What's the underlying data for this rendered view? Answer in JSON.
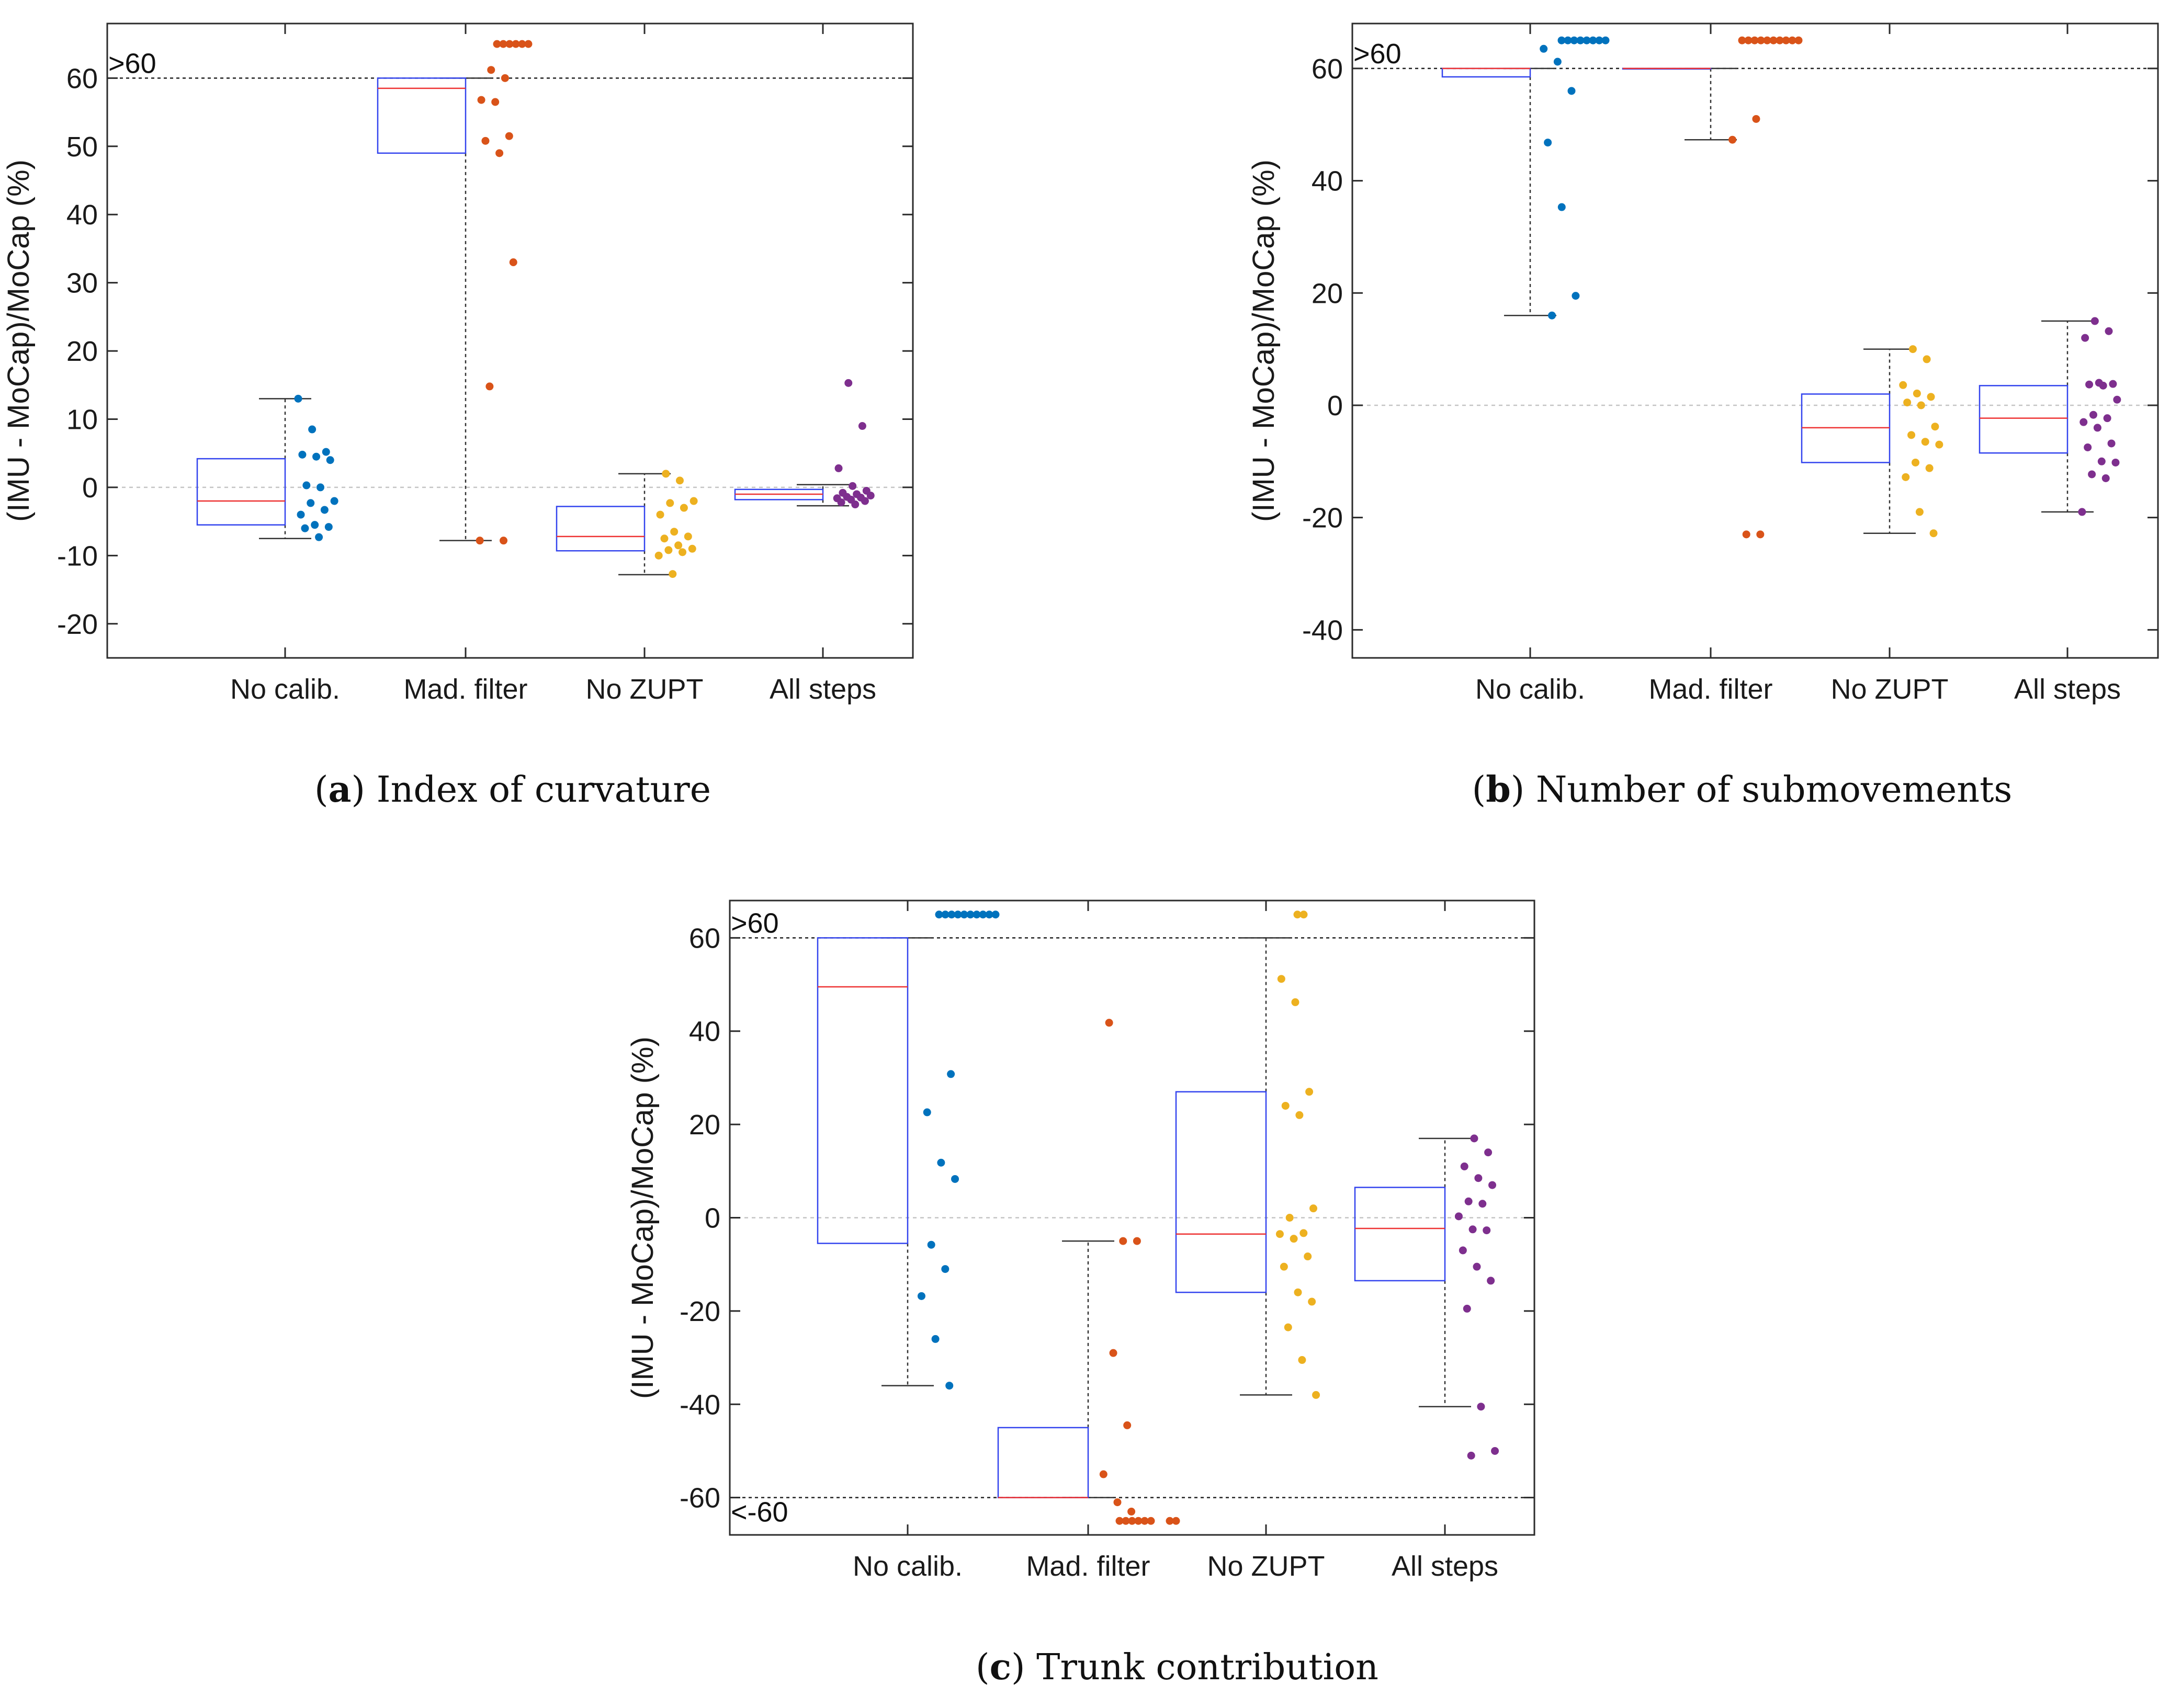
{
  "chart_data": [
    {
      "type": "box",
      "panel_letter": "a",
      "caption": "Index of curvature",
      "ylabel": "(IMU - MoCap)/MoCap (%)",
      "ylim": [
        -25,
        68
      ],
      "yticks": [
        60,
        50,
        40,
        30,
        20,
        10,
        0,
        -10,
        -20
      ],
      "threshold_lines": [
        {
          "y": 60,
          "label": ">60"
        }
      ],
      "categories": [
        "No calib.",
        "Mad. filter",
        "No ZUPT",
        "All steps"
      ],
      "colors": [
        "#0072BD",
        "#D95319",
        "#EDB120",
        "#7E2F8E"
      ],
      "boxes": [
        {
          "q1": -5.5,
          "median": -2,
          "q3": 4.2,
          "whisker_low": -7.5,
          "whisker_high": 13
        },
        {
          "q1": 49,
          "median": 58.5,
          "q3": 60,
          "whisker_low": -7.8,
          "whisker_high": 60
        },
        {
          "q1": -9.3,
          "median": -7.2,
          "q3": -2.8,
          "whisker_low": -12.8,
          "whisker_high": 2
        },
        {
          "q1": -1.8,
          "median": -1,
          "q3": -0.3,
          "whisker_low": -2.7,
          "whisker_high": 0.4
        }
      ],
      "points": [
        [
          13,
          8.5,
          5.2,
          4.8,
          4.5,
          4,
          0.3,
          0,
          -2,
          -2.3,
          -3.3,
          -4,
          -5.5,
          -5.8,
          -6,
          -7.3
        ],
        [
          65,
          65,
          65,
          65,
          65,
          65,
          61.2,
          60,
          56.8,
          56.5,
          51.5,
          50.8,
          49,
          33,
          14.8,
          -7.8,
          -7.8
        ],
        [
          2,
          1,
          -2,
          -2.3,
          -3,
          -4,
          -6.5,
          -7.2,
          -7.5,
          -8.5,
          -9,
          -9.2,
          -9.5,
          -10,
          -12.7
        ],
        [
          15.3,
          9,
          2.8,
          0.2,
          -0.5,
          -0.8,
          -1,
          -1.2,
          -1.4,
          -1.5,
          -1.6,
          -1.8,
          -2,
          -2.2,
          -2.5
        ]
      ]
    },
    {
      "type": "box",
      "panel_letter": "b",
      "caption": "Number of submovements",
      "ylabel": "(IMU - MoCap)/MoCap (%)",
      "ylim": [
        -45,
        68
      ],
      "yticks": [
        60,
        40,
        20,
        0,
        -20,
        -40
      ],
      "threshold_lines": [
        {
          "y": 60,
          "label": ">60"
        }
      ],
      "categories": [
        "No calib.",
        "Mad. filter",
        "No ZUPT",
        "All steps"
      ],
      "colors": [
        "#0072BD",
        "#D95319",
        "#EDB120",
        "#7E2F8E"
      ],
      "boxes": [
        {
          "q1": 58.5,
          "median": 60,
          "q3": 60,
          "whisker_low": 16,
          "whisker_high": 60
        },
        {
          "q1": 60,
          "median": 60,
          "q3": 60,
          "whisker_low": 47.3,
          "whisker_high": 60
        },
        {
          "q1": -10.2,
          "median": -4,
          "q3": 2,
          "whisker_low": -22.8,
          "whisker_high": 10
        },
        {
          "q1": -8.5,
          "median": -2.3,
          "q3": 3.5,
          "whisker_low": -19,
          "whisker_high": 15
        }
      ],
      "points": [
        [
          65,
          65,
          65,
          65,
          65,
          65,
          65,
          65,
          63.5,
          61.2,
          56,
          46.8,
          35.3,
          19.5,
          16
        ],
        [
          65,
          65,
          65,
          65,
          65,
          65,
          65,
          65,
          65,
          65,
          51,
          47.3,
          -23,
          -23
        ],
        [
          10,
          8.2,
          3.6,
          2.1,
          1.5,
          0.5,
          0,
          -3.8,
          -5.3,
          -6.5,
          -7,
          -10.2,
          -11.2,
          -12.8,
          -19,
          -22.8
        ],
        [
          15,
          13.2,
          12,
          4,
          3.8,
          3.7,
          3.5,
          1,
          -1.7,
          -2.3,
          -3,
          -4,
          -6.8,
          -7.5,
          -10,
          -10.2,
          -12.3,
          -13,
          -19
        ]
      ]
    },
    {
      "type": "box",
      "panel_letter": "c",
      "caption": "Trunk contribution",
      "ylabel": "(IMU - MoCap)/MoCap (%)",
      "ylim": [
        -68,
        68
      ],
      "yticks": [
        60,
        40,
        20,
        0,
        -20,
        -40,
        -60
      ],
      "threshold_lines": [
        {
          "y": 60,
          "label": ">60"
        },
        {
          "y": -60,
          "label": "<-60"
        }
      ],
      "categories": [
        "No calib.",
        "Mad. filter",
        "No ZUPT",
        "All steps"
      ],
      "colors": [
        "#0072BD",
        "#D95319",
        "#EDB120",
        "#7E2F8E"
      ],
      "boxes": [
        {
          "q1": -5.5,
          "median": 49.5,
          "q3": 60,
          "whisker_low": -36,
          "whisker_high": 60
        },
        {
          "q1": -60,
          "median": -60,
          "q3": -45,
          "whisker_low": -60,
          "whisker_high": -5
        },
        {
          "q1": -16,
          "median": -3.5,
          "q3": 27,
          "whisker_low": -38,
          "whisker_high": 60
        },
        {
          "q1": -13.5,
          "median": -2.3,
          "q3": 6.5,
          "whisker_low": -40.5,
          "whisker_high": 17
        }
      ],
      "points": [
        [
          65,
          65,
          65,
          65,
          65,
          65,
          65,
          65,
          65,
          65,
          30.8,
          22.6,
          11.8,
          8.3,
          -5.8,
          -11,
          -16.8,
          -26,
          -36
        ],
        [
          41.8,
          -5,
          -5,
          -29,
          -44.5,
          -55,
          -61,
          -63,
          -65,
          -65,
          -65,
          -65,
          -65,
          -65,
          -65,
          -65
        ],
        [
          65,
          65,
          51.2,
          46.2,
          27,
          24,
          22,
          2,
          0,
          -3.3,
          -3.5,
          -4.5,
          -8.3,
          -10.5,
          -16,
          -18,
          -23.5,
          -30.5,
          -38
        ],
        [
          17,
          14,
          11,
          8.5,
          7,
          3.5,
          3,
          0.3,
          -2.5,
          -2.7,
          -7,
          -10.5,
          -13.5,
          -19.5,
          -40.5,
          -50,
          -51
        ]
      ]
    }
  ]
}
